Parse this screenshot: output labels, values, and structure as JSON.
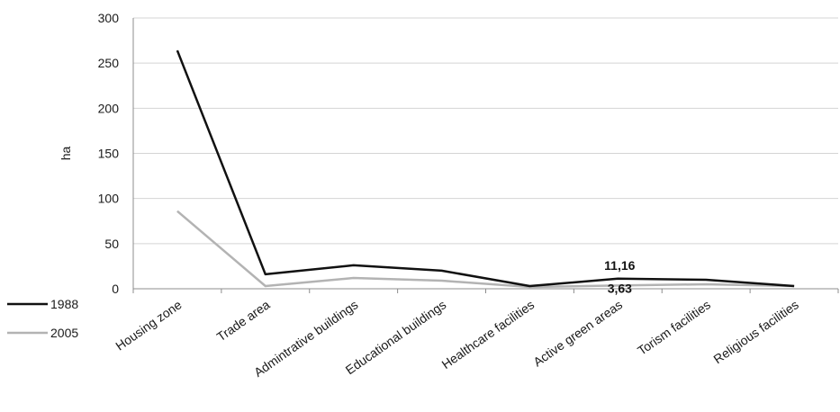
{
  "chart_data": {
    "type": "line",
    "title": "",
    "xlabel": "",
    "ylabel": "ha",
    "ylim": [
      0,
      300
    ],
    "yticks": [
      "0",
      "50",
      "100",
      "150",
      "200",
      "250",
      "300"
    ],
    "grid": true,
    "legend_position": "bottom-left",
    "categories": [
      "Housing zone",
      "Trade area",
      "Admintrative buildings",
      "Educational buildings",
      "Healthcare facilities",
      "Active green areas",
      "Torism facilities",
      "Religious facilities"
    ],
    "series": [
      {
        "name": "1988",
        "color": "#111111",
        "values": [
          264,
          16,
          26,
          20,
          3,
          11.16,
          10,
          3
        ]
      },
      {
        "name": "2005",
        "color": "#b3b3b3",
        "values": [
          86,
          3,
          12,
          9,
          2,
          3.63,
          5,
          3
        ]
      }
    ],
    "annotations": [
      {
        "text": "11,16",
        "series": "1988",
        "category": "Active green areas"
      },
      {
        "text": "3,63",
        "series": "2005",
        "category": "Active green areas"
      }
    ]
  }
}
